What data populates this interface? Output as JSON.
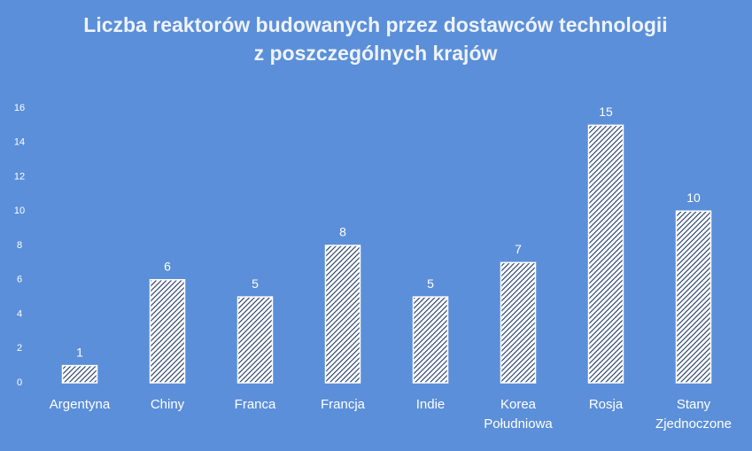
{
  "chart_data": {
    "type": "bar",
    "title": [
      "Liczba reaktorów budowanych przez dostawców technologii",
      "z poszczególnych krajów"
    ],
    "categories": [
      "Argentyna",
      "Chiny",
      "Franca",
      "Francja",
      "Indie",
      "Korea Południowa",
      "Rosja",
      "Stany Zjednoczone"
    ],
    "values": [
      1,
      6,
      5,
      8,
      5,
      7,
      15,
      10
    ],
    "color": "#1f3864",
    "ylim": [
      0,
      16
    ],
    "yticks": [
      0,
      2,
      4,
      6,
      8,
      10,
      12,
      14,
      16
    ],
    "grid": false
  }
}
